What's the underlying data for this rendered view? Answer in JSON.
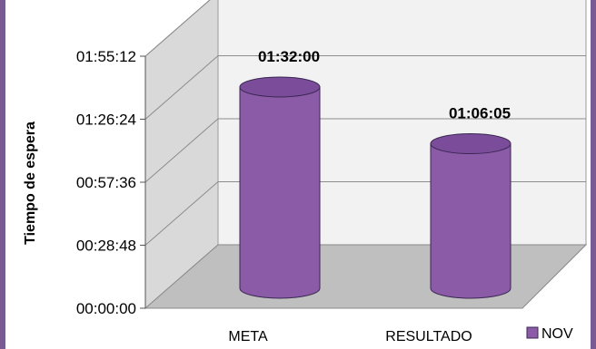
{
  "chart_data": {
    "type": "bar",
    "style": "3d-cylinder",
    "categories": [
      "META",
      "RESULTADO"
    ],
    "series": [
      {
        "name": "NOV",
        "values": [
          "01:32:00",
          "01:06:05"
        ]
      }
    ],
    "data_labels": [
      "01:32:00",
      "01:06:05"
    ],
    "ylabel": "Tiempo de espera",
    "y_ticks": [
      "00:00:00",
      "00:28:48",
      "00:57:36",
      "01:26:24",
      "01:55:12"
    ],
    "ylim": [
      "00:00:00",
      "01:55:12"
    ],
    "grid": true,
    "legend_position": "right",
    "colors": {
      "bar_fill": "#8b5ba8",
      "bar_top": "#7a4c99",
      "bar_stroke": "#3a2752",
      "wall": "#f2f2f2",
      "side_wall": "#d9d9d9",
      "floor": "#bfbfbf",
      "frame": "#7a5a92"
    }
  }
}
